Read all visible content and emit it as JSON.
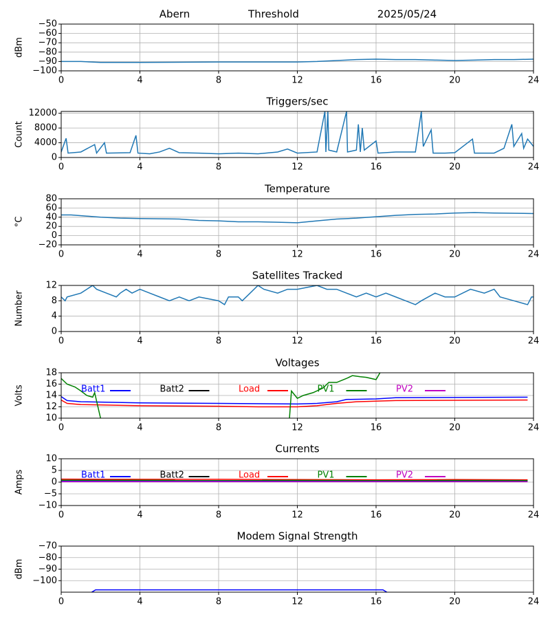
{
  "chart_data": [
    {
      "type": "line",
      "titles": [
        "Abern",
        "Threshold",
        "2025/05/24"
      ],
      "ylabel": "dBm",
      "color": "#1f77b4",
      "x": [
        0,
        1,
        2,
        4,
        8,
        12,
        13,
        14,
        15,
        16,
        17,
        18,
        19,
        20,
        21,
        22,
        23,
        24
      ],
      "values": [
        -90,
        -90,
        -91,
        -91,
        -90.5,
        -90.5,
        -90,
        -89,
        -88,
        -87.5,
        -88,
        -88,
        -88.5,
        -89,
        -88.5,
        -88,
        -88,
        -87.5
      ],
      "xlim": [
        0,
        24
      ],
      "xticks": [
        0,
        4,
        8,
        12,
        16,
        20,
        24
      ],
      "ylim": [
        -100,
        -50
      ],
      "yticks": [
        {
          "value": -100,
          "label": "−100"
        },
        {
          "value": -90,
          "label": "−90"
        },
        {
          "value": -80,
          "label": "−80"
        },
        {
          "value": -70,
          "label": "−70"
        },
        {
          "value": -60,
          "label": "−60"
        },
        {
          "value": -50,
          "label": "−50"
        }
      ],
      "grid": true
    },
    {
      "type": "line",
      "title": "Triggers/sec",
      "ylabel": "Count",
      "color": "#1f77b4",
      "x": [
        0,
        0.25,
        0.35,
        1,
        1.7,
        1.8,
        2.2,
        2.3,
        3.5,
        3.8,
        3.9,
        4.5,
        5,
        5.5,
        6,
        7,
        8,
        9,
        10,
        11,
        11.5,
        12,
        13,
        13.4,
        13.45,
        13.55,
        13.6,
        14,
        14.5,
        14.55,
        15,
        15.1,
        15.2,
        15.3,
        15.4,
        16,
        16.1,
        17,
        18,
        18.3,
        18.4,
        18.8,
        18.9,
        19.5,
        20,
        20.9,
        21,
        22,
        22.5,
        22.9,
        23,
        23.4,
        23.5,
        23.7,
        24
      ],
      "values": [
        1500,
        5200,
        1200,
        1500,
        3500,
        1200,
        4000,
        1200,
        1300,
        6000,
        1200,
        1000,
        1500,
        2500,
        1300,
        1200,
        1000,
        1200,
        1000,
        1500,
        2300,
        1200,
        1500,
        12500,
        1500,
        12500,
        2000,
        1500,
        12500,
        1500,
        2000,
        9000,
        1500,
        8000,
        2000,
        4500,
        1200,
        1500,
        1500,
        12500,
        3000,
        7500,
        1200,
        1200,
        1300,
        5000,
        1200,
        1200,
        2500,
        9000,
        3000,
        6500,
        2500,
        5000,
        3000
      ],
      "xlim": [
        0,
        24
      ],
      "xticks": [
        0,
        4,
        8,
        12,
        16,
        20,
        24
      ],
      "ylim": [
        0,
        12500
      ],
      "yticks": [
        0,
        4000,
        8000,
        12000
      ],
      "grid": true
    },
    {
      "type": "line",
      "title": "Temperature",
      "ylabel": "°C",
      "color": "#1f77b4",
      "x": [
        0,
        0.5,
        2,
        3,
        4,
        6,
        7,
        8,
        9,
        10,
        11,
        12,
        13,
        14,
        15,
        16,
        17,
        18,
        19,
        20,
        21,
        22,
        24
      ],
      "values": [
        45,
        45,
        40,
        38,
        37,
        36,
        33,
        32,
        30,
        30,
        29,
        28,
        32,
        36,
        38,
        41,
        44,
        46,
        47,
        49,
        50,
        49,
        48
      ],
      "xlim": [
        0,
        24
      ],
      "xticks": [
        0,
        4,
        8,
        12,
        16,
        20,
        24
      ],
      "ylim": [
        -20,
        80
      ],
      "yticks": [
        {
          "value": -20,
          "label": "−20"
        },
        0,
        20,
        40,
        60,
        80
      ],
      "grid": true
    },
    {
      "type": "line",
      "title": "Satellites Tracked",
      "ylabel": "Number",
      "color": "#1f77b4",
      "x": [
        0,
        0.2,
        0.3,
        1,
        1.3,
        1.6,
        1.8,
        2.3,
        2.8,
        3,
        3.3,
        3.6,
        4,
        4.5,
        5,
        5.5,
        6,
        6.5,
        7,
        8,
        8.3,
        8.5,
        9,
        9.2,
        9.6,
        10,
        10.3,
        11,
        11.5,
        12,
        13,
        13.5,
        14,
        14.5,
        15,
        15.5,
        16,
        16.5,
        17,
        17.5,
        18,
        18.3,
        19,
        19.5,
        20,
        20.8,
        21.5,
        22,
        22.3,
        23,
        23.7,
        23.9,
        24
      ],
      "values": [
        9,
        8,
        9,
        10,
        11,
        12,
        11,
        10,
        9,
        10,
        11,
        10,
        11,
        10,
        9,
        8,
        9,
        8,
        9,
        8,
        7,
        9,
        9,
        8,
        10,
        12,
        11,
        10,
        11,
        11,
        12,
        11,
        11,
        10,
        9,
        10,
        9,
        10,
        9,
        8,
        7,
        8,
        10,
        9,
        9,
        11,
        10,
        11,
        9,
        8,
        7,
        9,
        9
      ],
      "xlim": [
        0,
        24
      ],
      "xticks": [
        0,
        4,
        8,
        12,
        16,
        20,
        24
      ],
      "ylim": [
        0,
        12
      ],
      "yticks": [
        0,
        4,
        8,
        12
      ],
      "grid": true
    },
    {
      "type": "line",
      "title": "Voltages",
      "ylabel": "Volts",
      "legend": "top",
      "series": [
        {
          "name": "Batt1",
          "color": "#0000ff",
          "x": [
            0,
            0.3,
            1,
            4,
            8,
            12,
            13,
            14,
            14.5,
            16,
            17,
            23.7
          ],
          "values": [
            13.8,
            13.1,
            12.9,
            12.7,
            12.6,
            12.5,
            12.6,
            12.9,
            13.3,
            13.4,
            13.6,
            13.7
          ]
        },
        {
          "name": "Batt2",
          "color": "#000000",
          "x": [],
          "values": []
        },
        {
          "name": "Load",
          "color": "#ff0000",
          "x": [
            0,
            0.3,
            1,
            4,
            8,
            10,
            12,
            13,
            14,
            15,
            16,
            17,
            23.7
          ],
          "values": [
            13.2,
            12.6,
            12.4,
            12.2,
            12.1,
            12.0,
            12.0,
            12.2,
            12.6,
            12.9,
            13.0,
            13.1,
            13.2
          ]
        },
        {
          "name": "PV1",
          "color": "#008000",
          "x": [
            0,
            0.3,
            0.7,
            1,
            1.3,
            1.5,
            1.6,
            1.7,
            2.0,
            6,
            11.6,
            11.7,
            12,
            12.3,
            12.8,
            13.3,
            13.6,
            14,
            14.5,
            14.8,
            15.2,
            15.5,
            16.0,
            16.2
          ],
          "values": [
            17,
            16,
            15.5,
            14.8,
            14.0,
            13.8,
            13.7,
            14.5,
            10,
            null,
            10,
            14.8,
            13.5,
            14.0,
            14.5,
            15.3,
            16.3,
            16.3,
            17.0,
            17.5,
            17.3,
            17.2,
            16.8,
            18
          ]
        },
        {
          "name": "PV2",
          "color": "#bf00bf",
          "x": [],
          "values": []
        }
      ],
      "xlim": [
        0,
        24
      ],
      "xticks": [
        0,
        4,
        8,
        12,
        16,
        20,
        24
      ],
      "ylim": [
        10,
        18
      ],
      "yticks": [
        10,
        12,
        14,
        16,
        18
      ],
      "grid": true
    },
    {
      "type": "line",
      "title": "Currents",
      "ylabel": "Amps",
      "legend": "top",
      "series": [
        {
          "name": "Batt1",
          "color": "#0000ff",
          "x": [
            0,
            23.7
          ],
          "values": [
            0.6,
            0.5
          ]
        },
        {
          "name": "Batt2",
          "color": "#000000",
          "x": [],
          "values": []
        },
        {
          "name": "Load",
          "color": "#ff0000",
          "x": [
            0,
            4,
            8,
            12,
            16,
            20,
            23.7
          ],
          "values": [
            1.3,
            1.2,
            1.2,
            1.1,
            1.0,
            1.1,
            1.0
          ]
        },
        {
          "name": "PV1",
          "color": "#008000",
          "x": [
            0,
            23.7
          ],
          "values": [
            0.8,
            0.7
          ]
        },
        {
          "name": "PV2",
          "color": "#bf00bf",
          "x": [
            0,
            23.7
          ],
          "values": [
            0.2,
            0.2
          ]
        }
      ],
      "xlim": [
        0,
        24
      ],
      "xticks": [
        0,
        4,
        8,
        12,
        16,
        20,
        24
      ],
      "ylim": [
        -10,
        10
      ],
      "yticks": [
        {
          "value": -10,
          "label": "−10"
        },
        {
          "value": -5,
          "label": "−5"
        },
        0,
        5,
        10
      ],
      "grid": true
    },
    {
      "type": "line",
      "title": "Modem Signal Strength",
      "ylabel": "dBm",
      "color": "#0000ff",
      "x": [
        1.55,
        1.75,
        16.35,
        16.55
      ],
      "values": [
        -110,
        -108,
        -108,
        -110
      ],
      "xlim": [
        0,
        24
      ],
      "xticks": [
        0,
        4,
        8,
        12,
        16,
        20,
        24
      ],
      "ylim": [
        -110,
        -70
      ],
      "yticks": [
        {
          "value": -100,
          "label": "−100"
        },
        {
          "value": -90,
          "label": "−90"
        },
        {
          "value": -80,
          "label": "−80"
        },
        {
          "value": -70,
          "label": "−70"
        }
      ],
      "grid": true
    }
  ]
}
